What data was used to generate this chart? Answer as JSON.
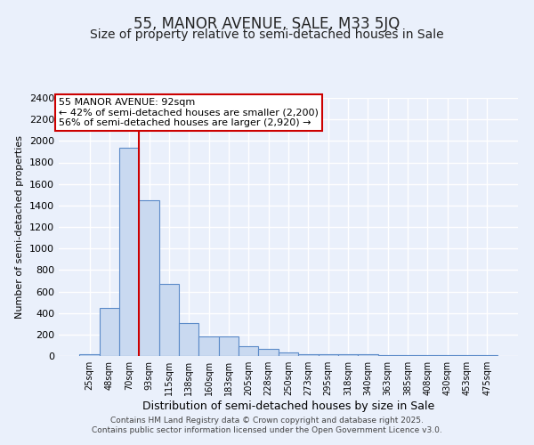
{
  "title": "55, MANOR AVENUE, SALE, M33 5JQ",
  "subtitle": "Size of property relative to semi-detached houses in Sale",
  "xlabel": "Distribution of semi-detached houses by size in Sale",
  "ylabel": "Number of semi-detached properties",
  "categories": [
    "25sqm",
    "48sqm",
    "70sqm",
    "93sqm",
    "115sqm",
    "138sqm",
    "160sqm",
    "183sqm",
    "205sqm",
    "228sqm",
    "250sqm",
    "273sqm",
    "295sqm",
    "318sqm",
    "340sqm",
    "363sqm",
    "385sqm",
    "408sqm",
    "430sqm",
    "453sqm",
    "475sqm"
  ],
  "values": [
    20,
    450,
    1940,
    1450,
    670,
    310,
    180,
    180,
    95,
    65,
    35,
    20,
    15,
    15,
    15,
    5,
    5,
    5,
    5,
    5,
    5
  ],
  "bar_color": "#c9d9f0",
  "bar_edge_color": "#5b8ac8",
  "bar_edge_width": 0.8,
  "red_line_x": 2.5,
  "red_line_color": "#cc0000",
  "annotation_title": "55 MANOR AVENUE: 92sqm",
  "annotation_line1": "← 42% of semi-detached houses are smaller (2,200)",
  "annotation_line2": "56% of semi-detached houses are larger (2,920) →",
  "annotation_box_color": "#ffffff",
  "annotation_box_edge": "#cc0000",
  "ylim": [
    0,
    2400
  ],
  "yticks": [
    0,
    200,
    400,
    600,
    800,
    1000,
    1200,
    1400,
    1600,
    1800,
    2000,
    2200,
    2400
  ],
  "background_color": "#eaf0fb",
  "grid_color": "#ffffff",
  "title_fontsize": 12,
  "subtitle_fontsize": 10,
  "ylabel_fontsize": 8,
  "xlabel_fontsize": 9,
  "footnote1": "Contains HM Land Registry data © Crown copyright and database right 2025.",
  "footnote2": "Contains public sector information licensed under the Open Government Licence v3.0."
}
